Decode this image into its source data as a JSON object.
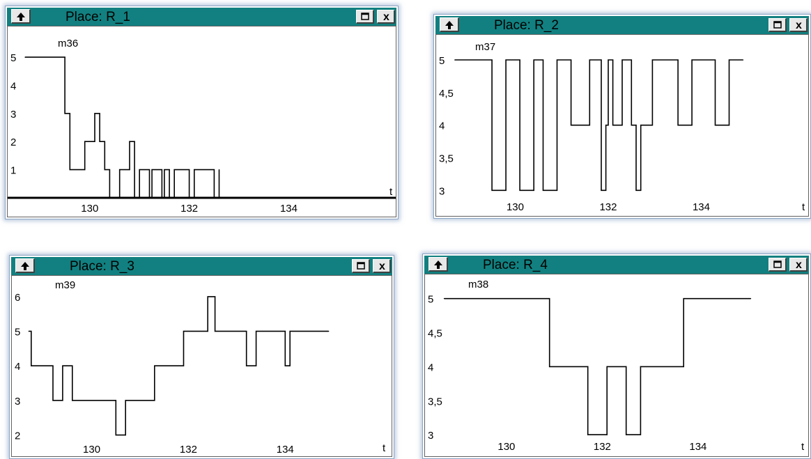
{
  "colors": {
    "titlebar": "#128080",
    "line": "#000000",
    "border": "#8aa5c4"
  },
  "windows": [
    {
      "title": "Place: R_1",
      "up_icon": "up-arrow-icon",
      "max_icon": "maximize-icon",
      "close_icon": "close-icon",
      "close_label": "x"
    },
    {
      "title": "Place: R_2",
      "up_icon": "up-arrow-icon",
      "max_icon": "maximize-icon",
      "close_icon": "close-icon",
      "close_label": "x"
    },
    {
      "title": "Place: R_3",
      "up_icon": "up-arrow-icon",
      "max_icon": "maximize-icon",
      "close_icon": "close-icon",
      "close_label": "x"
    },
    {
      "title": "Place: R_4",
      "up_icon": "up-arrow-icon",
      "max_icon": "maximize-icon",
      "close_icon": "close-icon",
      "close_label": "x"
    }
  ],
  "chart_data": [
    {
      "type": "line",
      "step": true,
      "series_label": "m36",
      "xlabel": "t",
      "x_ticks": [
        "130",
        "132",
        "134"
      ],
      "x_tick_values": [
        130,
        132,
        134
      ],
      "y_ticks": [
        "5",
        "4",
        "3",
        "2",
        "1"
      ],
      "y_tick_values": [
        5,
        4,
        3,
        2,
        1
      ],
      "xlim": [
        128.35,
        136.15
      ],
      "ylim": [
        -0.05,
        5.35
      ],
      "baseline": 0,
      "x": [
        128.7,
        129.5,
        129.5,
        129.6,
        129.6,
        129.9,
        129.9,
        130.1,
        130.1,
        130.2,
        130.2,
        130.3,
        130.3,
        130.4,
        130.4,
        130.6,
        130.6,
        130.8,
        130.8,
        130.9,
        130.9,
        131.0,
        131.0,
        131.2,
        131.2,
        131.25,
        131.25,
        131.45,
        131.45,
        131.5,
        131.5,
        131.6,
        131.6,
        131.7,
        131.7,
        132.0,
        132.0,
        132.1,
        132.1,
        132.5,
        132.5,
        132.6,
        132.6
      ],
      "values": [
        5,
        5,
        3,
        3,
        1,
        1,
        2,
        2,
        3,
        3,
        2,
        2,
        1,
        1,
        0,
        0,
        1,
        1,
        2,
        2,
        0,
        0,
        1,
        1,
        0,
        0,
        1,
        1,
        0,
        0,
        1,
        1,
        0,
        0,
        1,
        1,
        0,
        0,
        1,
        1,
        0,
        0,
        1
      ]
    },
    {
      "type": "line",
      "step": true,
      "series_label": "m37",
      "xlabel": "t",
      "x_ticks": [
        "130",
        "132",
        "134"
      ],
      "x_tick_values": [
        130,
        132,
        134
      ],
      "y_ticks": [
        "5",
        "4,5",
        "4",
        "3,5",
        "3"
      ],
      "y_tick_values": [
        5,
        4.5,
        4,
        3.5,
        3
      ],
      "xlim": [
        128.3,
        136.3
      ],
      "ylim": [
        2.95,
        5.15
      ],
      "x": [
        128.7,
        129.5,
        129.5,
        129.8,
        129.8,
        130.1,
        130.1,
        130.4,
        130.4,
        130.6,
        130.6,
        130.9,
        130.9,
        131.2,
        131.2,
        131.6,
        131.6,
        131.85,
        131.85,
        131.95,
        131.95,
        132.0,
        132.0,
        132.1,
        132.1,
        132.3,
        132.3,
        132.5,
        132.5,
        132.6,
        132.6,
        132.7,
        132.7,
        132.9,
        132.9,
        132.95,
        132.95,
        133.5,
        133.5,
        133.8,
        133.8,
        134.3,
        134.3,
        134.6,
        134.6,
        134.9
      ],
      "values": [
        5,
        5,
        3,
        3,
        5,
        5,
        3,
        3,
        5,
        5,
        3,
        3,
        5,
        5,
        4,
        4,
        5,
        5,
        3,
        3,
        4,
        4,
        5,
        5,
        4,
        4,
        5,
        5,
        4,
        4,
        3,
        3,
        4,
        4,
        4,
        4,
        5,
        5,
        4,
        4,
        5,
        5,
        4,
        4,
        5,
        5
      ]
    },
    {
      "type": "line",
      "step": true,
      "series_label": "m39",
      "xlabel": "t",
      "x_ticks": [
        "130",
        "132",
        "134"
      ],
      "x_tick_values": [
        130,
        132,
        134
      ],
      "y_ticks": [
        "6",
        "5",
        "4",
        "3",
        "2"
      ],
      "y_tick_values": [
        6,
        5,
        4,
        3,
        2
      ],
      "xlim": [
        128.35,
        136.2
      ],
      "ylim": [
        1.85,
        6.2
      ],
      "x": [
        128.7,
        128.75,
        128.75,
        129.2,
        129.2,
        129.4,
        129.4,
        129.6,
        129.6,
        130.5,
        130.5,
        130.7,
        130.7,
        131.3,
        131.3,
        131.9,
        131.9,
        132.4,
        132.4,
        132.55,
        132.55,
        133.2,
        133.2,
        133.4,
        133.4,
        134.0,
        134.0,
        134.1,
        134.1,
        134.9
      ],
      "values": [
        5,
        5,
        4,
        4,
        3,
        3,
        4,
        4,
        3,
        3,
        2,
        2,
        3,
        3,
        4,
        4,
        5,
        5,
        6,
        6,
        5,
        5,
        4,
        4,
        5,
        5,
        4,
        4,
        5,
        5
      ]
    },
    {
      "type": "line",
      "step": true,
      "series_label": "m38",
      "xlabel": "t",
      "x_ticks": [
        "130",
        "132",
        "134"
      ],
      "x_tick_values": [
        130,
        132,
        134
      ],
      "y_ticks": [
        "5",
        "4,5",
        "4",
        "3,5",
        "3"
      ],
      "y_tick_values": [
        5,
        4.5,
        4,
        3.5,
        3
      ],
      "xlim": [
        128.3,
        136.3
      ],
      "ylim": [
        2.95,
        5.15
      ],
      "x": [
        128.7,
        130.9,
        130.9,
        131.7,
        131.7,
        132.1,
        132.1,
        132.5,
        132.5,
        132.8,
        132.8,
        133.7,
        133.7,
        135.1
      ],
      "values": [
        5,
        5,
        4,
        4,
        3,
        3,
        4,
        4,
        3,
        3,
        4,
        4,
        5,
        5
      ]
    }
  ]
}
